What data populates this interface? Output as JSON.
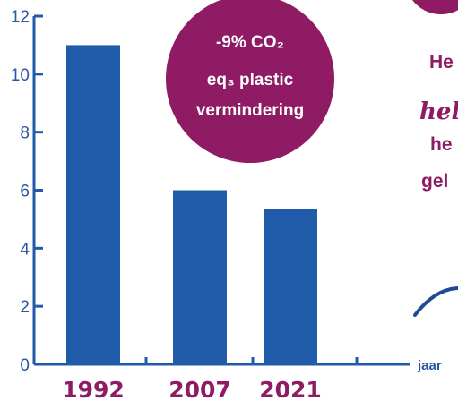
{
  "chart_data": {
    "type": "bar",
    "categories": [
      "1992",
      "2007",
      "2021"
    ],
    "values": [
      11,
      6,
      5.35
    ],
    "xlabel": "jaar",
    "ylabel": "",
    "ylim": [
      0,
      12
    ],
    "yticks": [
      "0",
      "2",
      "4",
      "6",
      "8",
      "10",
      "12"
    ],
    "grid": false,
    "bar_color": "#1f5ba9",
    "axis_color": "#1f5ba9"
  },
  "badge": {
    "line1": "-9% CO₂",
    "line2": "eq₃ plastic",
    "line3": "vermindering",
    "color": "#8e1b63"
  },
  "side_text": {
    "line1": "He",
    "line2": "hel",
    "line3": "he",
    "line4": "gel"
  }
}
